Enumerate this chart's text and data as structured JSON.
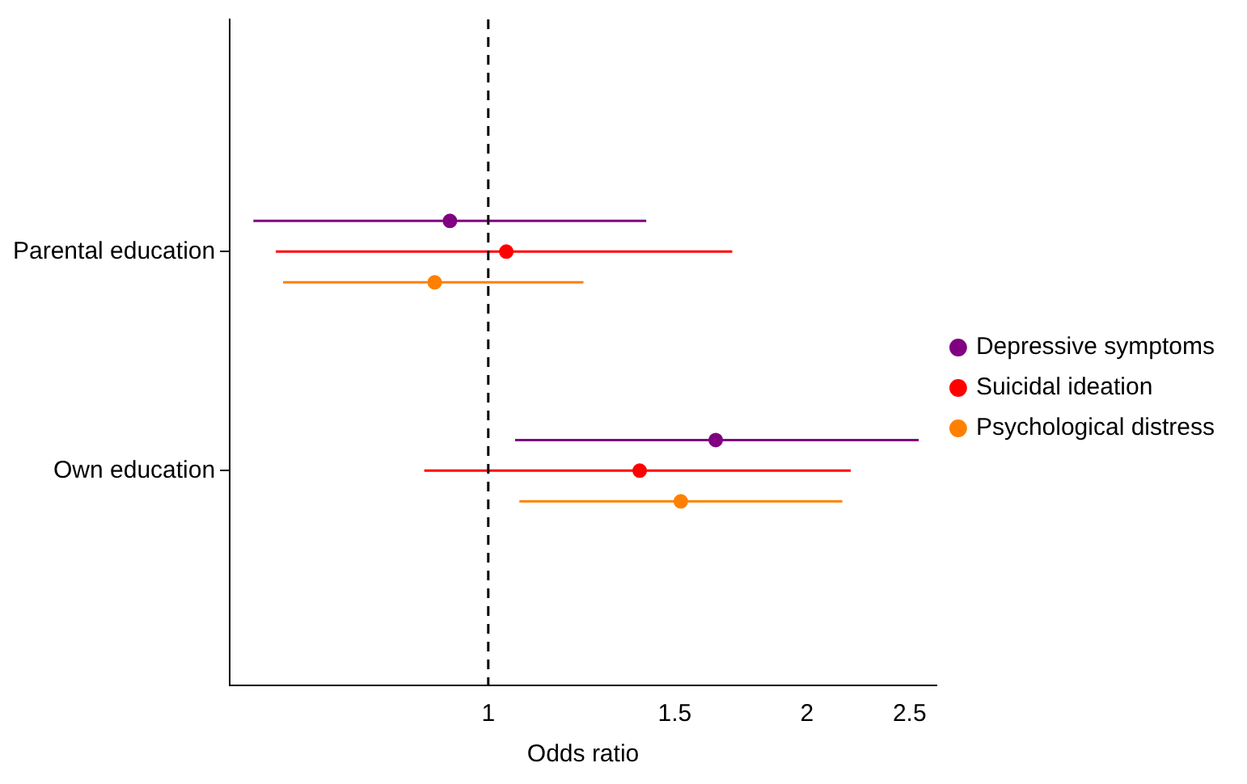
{
  "chart_data": {
    "type": "scatter",
    "orientation": "horizontal",
    "xlabel": "Odds ratio",
    "categories": [
      "Parental education",
      "Own education"
    ],
    "series": [
      {
        "name": "Depressive symptoms",
        "color": "#800080",
        "values": [
          0.92,
          1.64
        ],
        "errors": [
          [
            0.6,
            1.41
          ],
          [
            1.06,
            2.55
          ]
        ]
      },
      {
        "name": "Suicidal ideation",
        "color": "#ff0000",
        "values": [
          1.04,
          1.39
        ],
        "errors": [
          [
            0.63,
            1.7
          ],
          [
            0.87,
            2.2
          ]
        ]
      },
      {
        "name": "Psychological distress",
        "color": "#ff8000",
        "values": [
          0.89,
          1.52
        ],
        "errors": [
          [
            0.64,
            1.23
          ],
          [
            1.07,
            2.16
          ]
        ]
      }
    ],
    "log": "x",
    "xlim": [
      0.57,
      2.65
    ],
    "xticks": [
      1,
      1.5,
      2,
      2.5
    ],
    "ref_lines": [
      {
        "axis": "x",
        "value": 1,
        "line_style": "dashed",
        "color": "#000000"
      }
    ],
    "grid": false,
    "legend": "right",
    "marker": "circle"
  }
}
